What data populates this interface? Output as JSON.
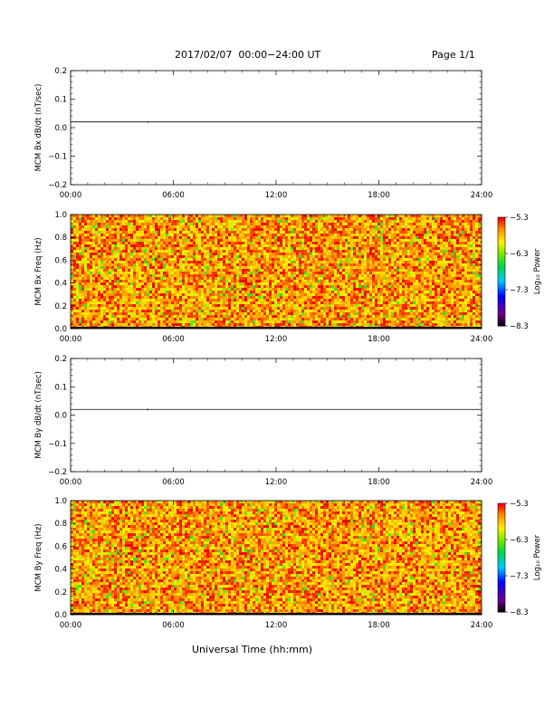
{
  "header": {
    "title": "2017/02/07  00:00−24:00 UT",
    "page": "Page 1/1",
    "xlabel": "Universal Time (hh:mm)"
  },
  "chart_data": [
    {
      "type": "line",
      "title": "",
      "xlabel": "",
      "ylabel": "MCM Bx dB/dt (nT/sec)",
      "x_ticks": [
        "00:00",
        "06:00",
        "12:00",
        "18:00",
        "24:00"
      ],
      "xlim": [
        0,
        24
      ],
      "ylim": [
        -0.2,
        0.2
      ],
      "y_ticks": [
        "0.2",
        "0.1",
        "0.0",
        "−0.1",
        "−0.2"
      ],
      "series": [
        {
          "x": [
            0,
            4.5,
            24
          ],
          "y": [
            0.02,
            0.02,
            0.02
          ]
        }
      ],
      "grid": false
    },
    {
      "type": "heatmap",
      "title": "",
      "xlabel": "",
      "ylabel": "MCM Bx Freq (Hz)",
      "x_ticks": [
        "00:00",
        "06:00",
        "12:00",
        "18:00",
        "24:00"
      ],
      "xlim": [
        0,
        24
      ],
      "ylim": [
        0.0,
        1.0
      ],
      "y_ticks": [
        "1.0",
        "0.8",
        "0.6",
        "0.4",
        "0.2",
        "0.0"
      ],
      "colorbar": {
        "label": "Log₁₀ Power",
        "ticks": [
          "−5.3",
          "−6.3",
          "−7.3",
          "−8.3"
        ],
        "range": [
          -8.3,
          -5.3
        ]
      },
      "typical_log_power": [
        -6.1,
        -5.3
      ],
      "grid": false
    },
    {
      "type": "line",
      "title": "",
      "xlabel": "",
      "ylabel": "MCM By dB/dt (nT/sec)",
      "x_ticks": [
        "00:00",
        "06:00",
        "12:00",
        "18:00",
        "24:00"
      ],
      "xlim": [
        0,
        24
      ],
      "ylim": [
        -0.2,
        0.2
      ],
      "y_ticks": [
        "0.2",
        "0.1",
        "0.0",
        "−0.1",
        "−0.2"
      ],
      "series": [
        {
          "x": [
            0,
            4.5,
            24
          ],
          "y": [
            0.02,
            0.02,
            0.02
          ]
        }
      ],
      "grid": false
    },
    {
      "type": "heatmap",
      "title": "",
      "xlabel": "",
      "ylabel": "MCM By Freq (Hz)",
      "x_ticks": [
        "00:00",
        "06:00",
        "12:00",
        "18:00",
        "24:00"
      ],
      "xlim": [
        0,
        24
      ],
      "ylim": [
        0.0,
        1.0
      ],
      "y_ticks": [
        "1.0",
        "0.8",
        "0.6",
        "0.4",
        "0.2",
        "0.0"
      ],
      "colorbar": {
        "label": "Log₁₀ Power",
        "ticks": [
          "−5.3",
          "−6.3",
          "−7.3",
          "−8.3"
        ],
        "range": [
          -8.3,
          -5.3
        ]
      },
      "typical_log_power": [
        -6.1,
        -5.3
      ],
      "grid": false
    }
  ]
}
